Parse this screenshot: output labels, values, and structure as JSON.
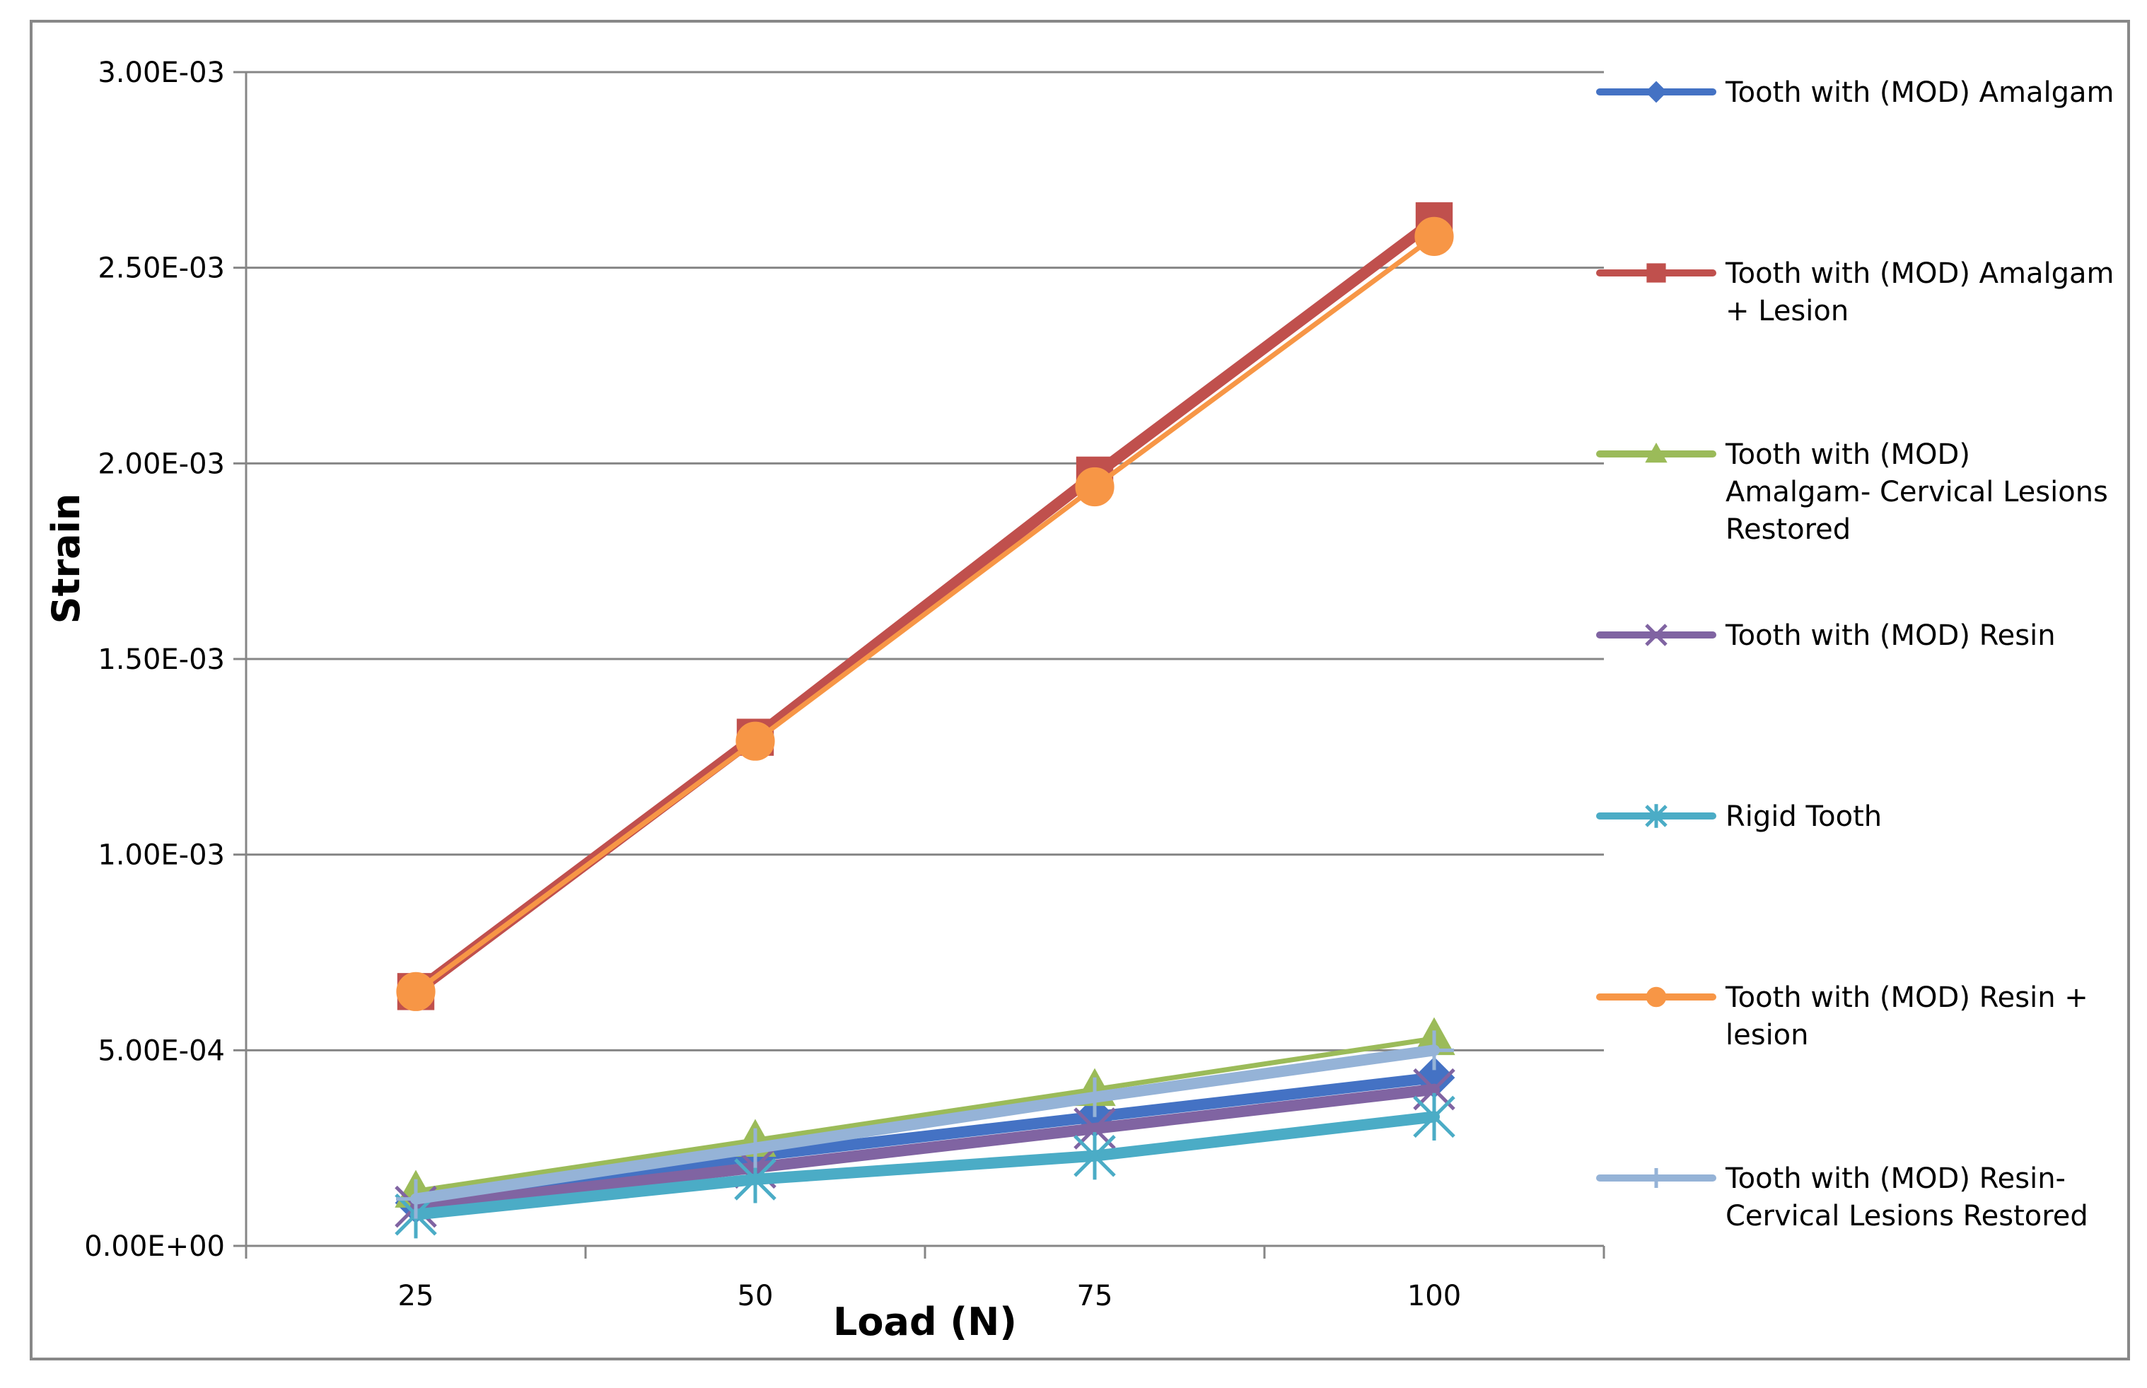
{
  "chart_data": {
    "type": "line",
    "title": "",
    "xlabel": "Load (N)",
    "ylabel": "Strain",
    "categories": [
      "25",
      "50",
      "75",
      "100"
    ],
    "ylim": [
      0,
      0.003
    ],
    "yticks": [
      {
        "value": 0,
        "label": "0.00E+00"
      },
      {
        "value": 0.0005,
        "label": "5.00E-04"
      },
      {
        "value": 0.001,
        "label": "1.00E-03"
      },
      {
        "value": 0.0015,
        "label": "1.50E-03"
      },
      {
        "value": 0.002,
        "label": "2.00E-03"
      },
      {
        "value": 0.0025,
        "label": "2.50E-03"
      },
      {
        "value": 0.003,
        "label": "3.00E-03"
      }
    ],
    "grid": true,
    "legend_position": "right",
    "series": [
      {
        "name": "Tooth with (MOD) Amalgam",
        "legend_lines": [
          "Tooth with (MOD) Amalgam"
        ],
        "color": "#4472C4",
        "marker": "diamond",
        "line_width": "thick",
        "values": [
          0.00011,
          0.00023,
          0.00033,
          0.00043
        ]
      },
      {
        "name": "Tooth with (MOD) Amalgam + Lesion",
        "legend_lines": [
          "Tooth with (MOD) Amalgam",
          "+ Lesion"
        ],
        "color": "#C0504D",
        "marker": "square",
        "line_width": "thick",
        "values": [
          0.00065,
          0.0013,
          0.00197,
          0.00262
        ]
      },
      {
        "name": "Tooth with (MOD) Amalgam- Cervical Lesions Restored",
        "legend_lines": [
          "Tooth with (MOD)",
          "Amalgam- Cervical Lesions",
          "Restored"
        ],
        "color": "#9BBB59",
        "marker": "triangle",
        "line_width": "thin",
        "values": [
          0.00014,
          0.00027,
          0.0004,
          0.00053
        ]
      },
      {
        "name": "Tooth with (MOD) Resin",
        "legend_lines": [
          "Tooth with (MOD) Resin"
        ],
        "color": "#8064A2",
        "marker": "x",
        "line_width": "thick",
        "values": [
          0.0001,
          0.0002,
          0.0003,
          0.0004
        ]
      },
      {
        "name": "Rigid Tooth",
        "legend_lines": [
          "Rigid  Tooth"
        ],
        "color": "#4BACC6",
        "marker": "star",
        "line_width": "thick",
        "values": [
          8e-05,
          0.00017,
          0.00023,
          0.00033
        ]
      },
      {
        "name": "Tooth with (MOD) Resin + lesion",
        "legend_lines": [
          "Tooth with (MOD) Resin +",
          "lesion"
        ],
        "color": "#F79646",
        "marker": "circle",
        "line_width": "thin",
        "values": [
          0.00065,
          0.00129,
          0.00194,
          0.00258
        ]
      },
      {
        "name": "Tooth with (MOD) Resin- Cervical Lesions Restored",
        "legend_lines": [
          "Tooth with (MOD) Resin-",
          "Cervical Lesions Restored"
        ],
        "color": "#95B3D7",
        "marker": "plus",
        "line_width": "thick",
        "values": [
          0.00012,
          0.00025,
          0.00038,
          0.0005
        ]
      }
    ]
  }
}
